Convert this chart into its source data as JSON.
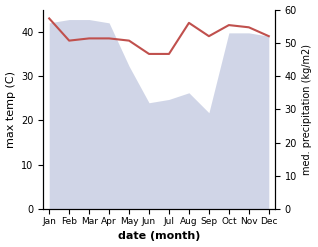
{
  "months": [
    "Jan",
    "Feb",
    "Mar",
    "Apr",
    "May",
    "Jun",
    "Jul",
    "Aug",
    "Sep",
    "Oct",
    "Nov",
    "Dec"
  ],
  "month_indices": [
    0,
    1,
    2,
    3,
    4,
    5,
    6,
    7,
    8,
    9,
    10,
    11
  ],
  "temp_max": [
    43,
    38,
    38.5,
    38.5,
    38,
    35,
    35,
    42,
    39,
    41.5,
    41,
    39
  ],
  "precipitation": [
    56,
    57,
    57,
    56,
    43,
    32,
    33,
    35,
    29,
    53,
    53,
    52
  ],
  "temp_color": "#c0504d",
  "precip_color": "#aab4d4",
  "temp_ylim": [
    0,
    45
  ],
  "precip_ylim": [
    0,
    60
  ],
  "temp_yticks": [
    0,
    10,
    20,
    30,
    40
  ],
  "precip_yticks": [
    0,
    10,
    20,
    30,
    40,
    50,
    60
  ],
  "xlabel": "date (month)",
  "ylabel_left": "max temp (C)",
  "ylabel_right": "med. precipitation (kg/m2)",
  "background_color": "#ffffff"
}
